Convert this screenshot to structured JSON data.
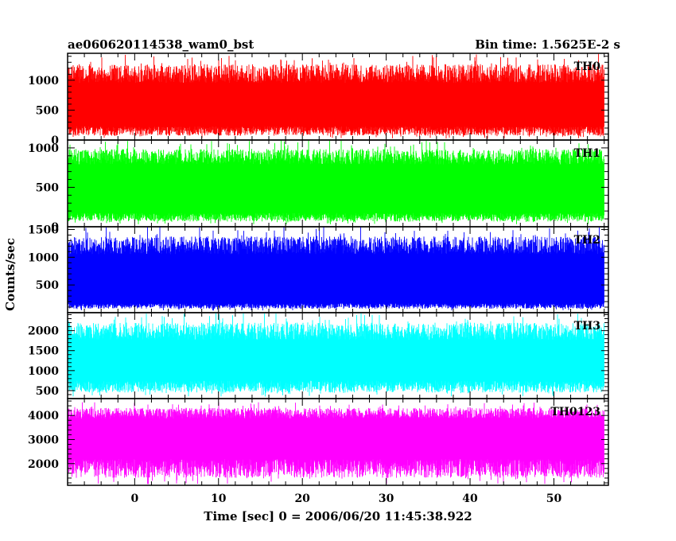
{
  "chart_data": {
    "type": "line",
    "title_left": "ae060620114538_wam0_bst",
    "title_right": "Bin time: 1.5625E-2 s",
    "xlabel": "Time [sec] 0 = 2006/06/20 11:45:38.922",
    "ylabel": "Counts/sec",
    "xlim": [
      -8,
      56.5
    ],
    "xticks": [
      0,
      10,
      20,
      30,
      40,
      50
    ],
    "x_start": -8,
    "x_end": 56,
    "series": [
      {
        "name": "TH0",
        "color": "#ff0000",
        "ylim": [
          0,
          1450
        ],
        "yticks": [
          0,
          500,
          1000
        ],
        "base_low": 150,
        "base_high": 1050,
        "spike_max": 1440,
        "dip_min": 20
      },
      {
        "name": "TH1",
        "color": "#00ff00",
        "ylim": [
          0,
          1100
        ],
        "yticks": [
          0,
          500,
          1000
        ],
        "base_low": 120,
        "base_high": 850,
        "spike_max": 1095,
        "dip_min": 30
      },
      {
        "name": "TH2",
        "color": "#0000ff",
        "ylim": [
          0,
          1550
        ],
        "yticks": [
          500,
          1000,
          1500
        ],
        "base_low": 120,
        "base_high": 1150,
        "spike_max": 1550,
        "dip_min": 40
      },
      {
        "name": "TH3",
        "color": "#00ffff",
        "ylim": [
          300,
          2450
        ],
        "yticks": [
          500,
          1000,
          1500,
          2000
        ],
        "base_low": 600,
        "base_high": 1900,
        "spike_max": 2440,
        "dip_min": 350
      },
      {
        "name": "TH0123",
        "color": "#ff00ff",
        "ylim": [
          1100,
          4700
        ],
        "yticks": [
          2000,
          3000,
          4000
        ],
        "base_low": 1800,
        "base_high": 4000,
        "spike_max": 4550,
        "dip_min": 1150
      }
    ]
  }
}
